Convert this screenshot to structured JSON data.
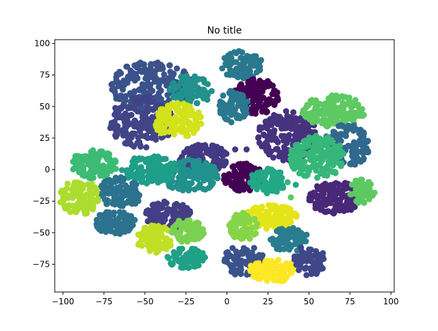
{
  "chart_data": {
    "type": "scatter",
    "title": "No title",
    "xlabel": "",
    "ylabel": "",
    "xlim": [
      -105,
      102
    ],
    "ylim": [
      -97,
      103
    ],
    "xticks": [
      -100,
      -75,
      -50,
      -25,
      0,
      25,
      50,
      75,
      100
    ],
    "yticks": [
      -75,
      -50,
      -25,
      0,
      25,
      50,
      75,
      100
    ],
    "grid": false,
    "legend": "none",
    "colormap": "viridis",
    "clusters": [
      {
        "cx": -46,
        "cy": 66,
        "rx": 25,
        "ry": 20,
        "color": "#3b528b",
        "n": 220
      },
      {
        "cx": -22,
        "cy": 63,
        "rx": 13,
        "ry": 12,
        "color": "#21918c",
        "n": 90
      },
      {
        "cx": -52,
        "cy": 38,
        "rx": 20,
        "ry": 21,
        "color": "#414487",
        "n": 180
      },
      {
        "cx": -30,
        "cy": 39,
        "rx": 15,
        "ry": 14,
        "color": "#d2e21b",
        "n": 130
      },
      {
        "cx": 9,
        "cy": 83,
        "rx": 13,
        "ry": 11,
        "color": "#2a788e",
        "n": 100
      },
      {
        "cx": 18,
        "cy": 58,
        "rx": 14,
        "ry": 14,
        "color": "#440154",
        "n": 130
      },
      {
        "cx": 4,
        "cy": 50,
        "rx": 9,
        "ry": 13,
        "color": "#2a788e",
        "n": 80
      },
      {
        "cx": 37,
        "cy": 27,
        "rx": 18,
        "ry": 20,
        "color": "#46327e",
        "n": 170
      },
      {
        "cx": 65,
        "cy": 46,
        "rx": 19,
        "ry": 13,
        "color": "#5ec962",
        "n": 150
      },
      {
        "cx": 73,
        "cy": 19,
        "rx": 14,
        "ry": 17,
        "color": "#31688e",
        "n": 130
      },
      {
        "cx": 55,
        "cy": 10,
        "rx": 17,
        "ry": 17,
        "color": "#35b779",
        "n": 160
      },
      {
        "cx": -14,
        "cy": 9,
        "rx": 15,
        "ry": 11,
        "color": "#443983",
        "n": 110
      },
      {
        "cx": 10,
        "cy": -6,
        "rx": 12,
        "ry": 11,
        "color": "#440154",
        "n": 110
      },
      {
        "cx": 25,
        "cy": -9,
        "rx": 11,
        "ry": 10,
        "color": "#22a884",
        "n": 80
      },
      {
        "cx": -22,
        "cy": -5,
        "rx": 17,
        "ry": 13,
        "color": "#21918c",
        "n": 140
      },
      {
        "cx": -47,
        "cy": 0,
        "rx": 17,
        "ry": 11,
        "color": "#1f9e89",
        "n": 120
      },
      {
        "cx": -81,
        "cy": 4,
        "rx": 14,
        "ry": 12,
        "color": "#3cbb75",
        "n": 110
      },
      {
        "cx": -65,
        "cy": -18,
        "rx": 14,
        "ry": 12,
        "color": "#2c728e",
        "n": 100
      },
      {
        "cx": -90,
        "cy": -22,
        "rx": 12,
        "ry": 14,
        "color": "#addc30",
        "n": 110
      },
      {
        "cx": -68,
        "cy": -42,
        "rx": 12,
        "ry": 10,
        "color": "#2c728e",
        "n": 90
      },
      {
        "cx": 66,
        "cy": -22,
        "rx": 16,
        "ry": 13,
        "color": "#482878",
        "n": 140
      },
      {
        "cx": 83,
        "cy": -17,
        "rx": 8,
        "ry": 10,
        "color": "#5ec962",
        "n": 60
      },
      {
        "cx": -36,
        "cy": -36,
        "rx": 14,
        "ry": 11,
        "color": "#433e85",
        "n": 110
      },
      {
        "cx": -44,
        "cy": -55,
        "rx": 11,
        "ry": 11,
        "color": "#c0df25",
        "n": 80
      },
      {
        "cx": -24,
        "cy": -49,
        "rx": 10,
        "ry": 10,
        "color": "#7ad151",
        "n": 70
      },
      {
        "cx": -25,
        "cy": -70,
        "rx": 12,
        "ry": 8,
        "color": "#1fa187",
        "n": 70
      },
      {
        "cx": 27,
        "cy": -38,
        "rx": 16,
        "ry": 10,
        "color": "#e5e419",
        "n": 110
      },
      {
        "cx": 10,
        "cy": -45,
        "rx": 9,
        "ry": 11,
        "color": "#86d549",
        "n": 70
      },
      {
        "cx": 38,
        "cy": -56,
        "rx": 12,
        "ry": 10,
        "color": "#287d8e",
        "n": 80
      },
      {
        "cx": 10,
        "cy": -72,
        "rx": 13,
        "ry": 12,
        "color": "#3b528b",
        "n": 100
      },
      {
        "cx": 28,
        "cy": -80,
        "rx": 15,
        "ry": 9,
        "color": "#fde725",
        "n": 100
      },
      {
        "cx": 50,
        "cy": -72,
        "rx": 10,
        "ry": 12,
        "color": "#404688",
        "n": 80
      }
    ],
    "outliers": [
      {
        "x": 5,
        "y": 16,
        "color": "#443983"
      },
      {
        "x": 12,
        "y": 16,
        "color": "#443983"
      },
      {
        "x": 37,
        "y": -10,
        "color": "#35b779"
      },
      {
        "x": 42,
        "y": -12,
        "color": "#22a884"
      },
      {
        "x": 39,
        "y": -22,
        "color": "#5ec962"
      },
      {
        "x": -87,
        "y": -5,
        "color": "#3cbb75"
      }
    ]
  }
}
